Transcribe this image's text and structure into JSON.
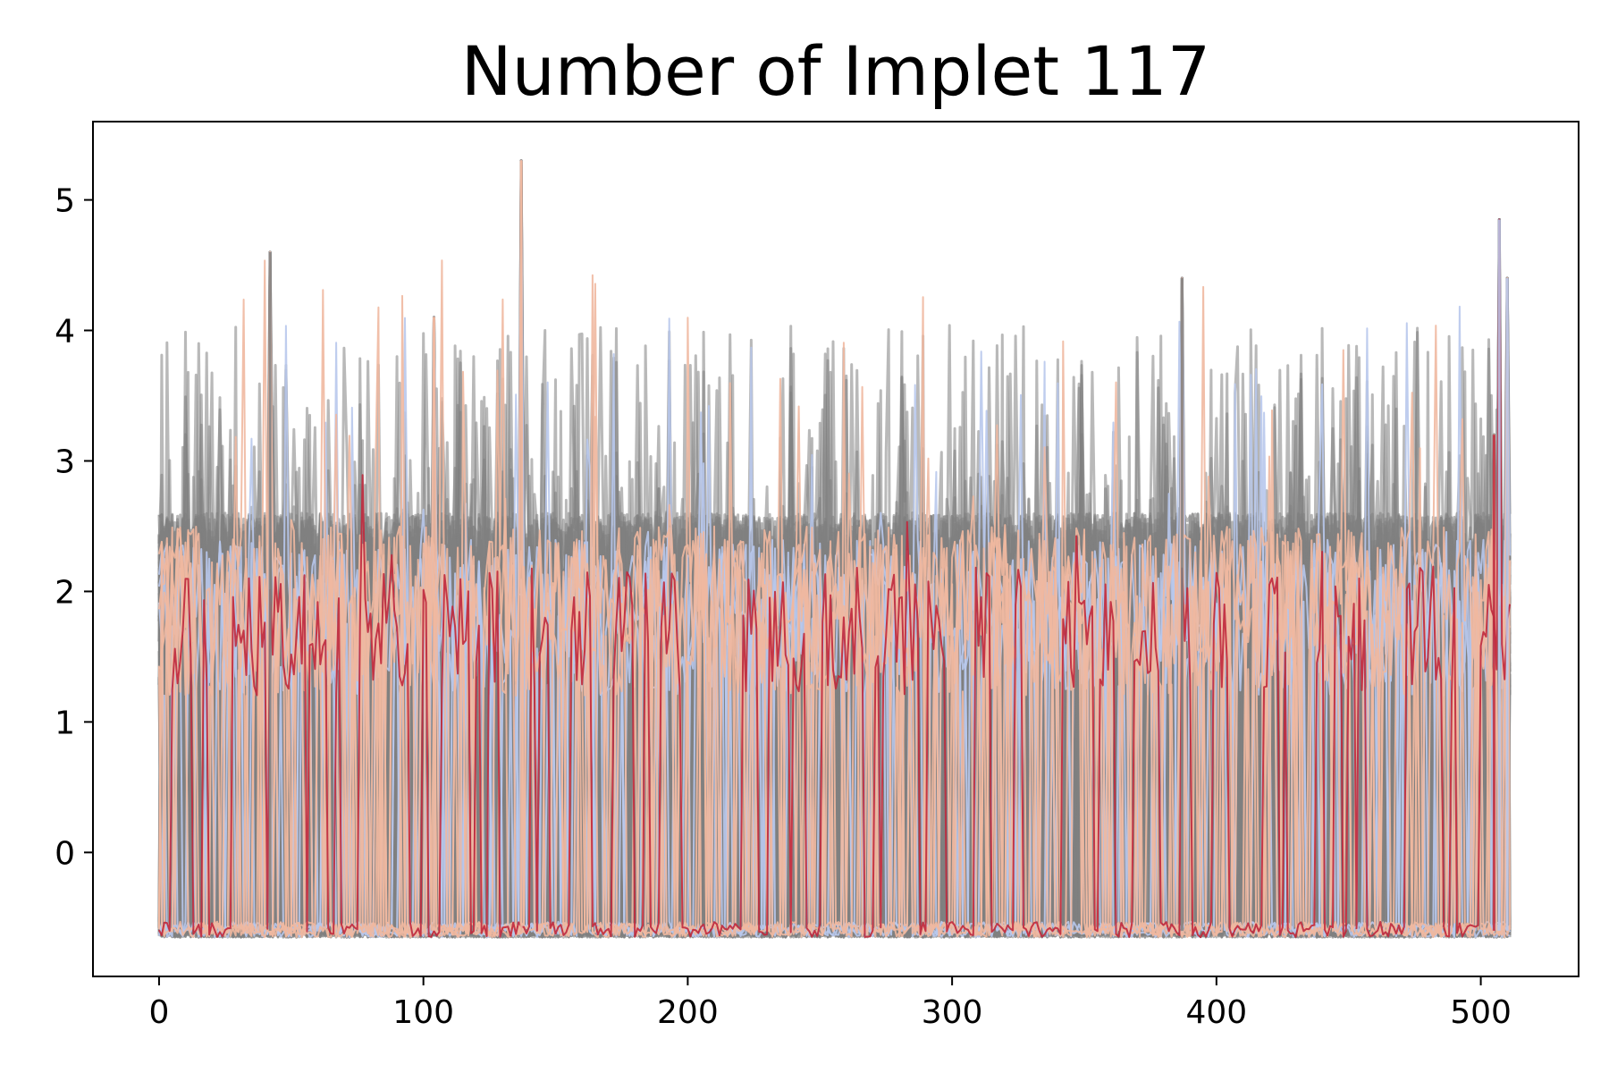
{
  "chart_data": {
    "type": "line",
    "title": "Number of Implet 117",
    "xlabel": "",
    "ylabel": "",
    "xlim": [
      -25,
      537
    ],
    "ylim": [
      -0.95,
      5.6
    ],
    "x_ticks": [
      0,
      100,
      200,
      300,
      400,
      500
    ],
    "y_ticks": [
      0,
      1,
      2,
      3,
      4,
      5
    ],
    "n_points": 512,
    "grid": false,
    "legend": "none",
    "series_groups": [
      {
        "name": "gray background traces",
        "color": "#808080",
        "count": 60,
        "baseline": -0.6,
        "typical_peak": 2.4,
        "max": 4.6
      },
      {
        "name": "blue highlighted traces",
        "color": "#b8c8ec",
        "count": 6,
        "baseline": -0.6,
        "typical_peak": 2.2,
        "max": 4.85
      },
      {
        "name": "orange highlighted traces",
        "color": "#f0b8a0",
        "count": 6,
        "baseline": -0.6,
        "typical_peak": 2.3,
        "max": 5.3
      },
      {
        "name": "red highlighted trace",
        "color": "#c0283c",
        "count": 1,
        "baseline": -0.6,
        "typical_peak": 2.0,
        "max": 3.2
      }
    ],
    "notable_peaks": [
      {
        "x": 42,
        "y": 4.6
      },
      {
        "x": 104,
        "y": 4.1
      },
      {
        "x": 137,
        "y": 5.3
      },
      {
        "x": 387,
        "y": 4.4
      },
      {
        "x": 505,
        "y": 3.2
      },
      {
        "x": 507,
        "y": 4.85
      },
      {
        "x": 510,
        "y": 4.4
      }
    ]
  },
  "colors": {
    "gray": "#808080",
    "blue": "#b8c8ec",
    "orange": "#f0b8a0",
    "red": "#c0283c",
    "light": "#dcdcdc"
  }
}
